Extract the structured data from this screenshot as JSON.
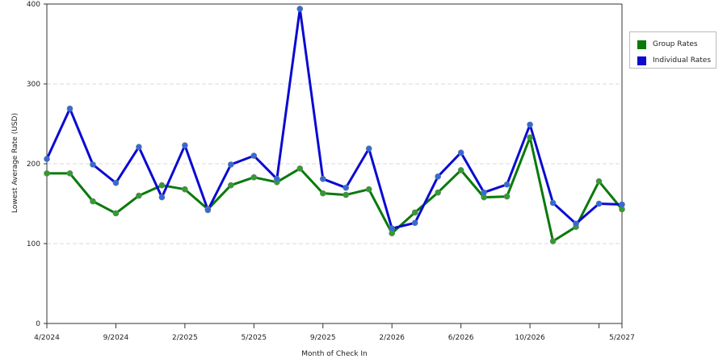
{
  "chart_data": {
    "type": "line",
    "title": "",
    "xlabel": "Month of Check In",
    "ylabel": "Lowest Average Rate (USD)",
    "ylim": [
      0,
      400
    ],
    "yticks": [
      "0",
      "100",
      "200",
      "300",
      "400"
    ],
    "x_tick_labels": [
      "4/2024",
      "9/2024",
      "2/2025",
      "5/2025",
      "9/2025",
      "2/2026",
      "6/2026",
      "10/2026",
      "",
      "5/2027"
    ],
    "x_tick_index": [
      0,
      3,
      6,
      9,
      12,
      15,
      18,
      21,
      24,
      25
    ],
    "grid": "horizontal dashed",
    "legend_position": "right",
    "series": [
      {
        "name": "Group Rates",
        "color": "#0a7a0a",
        "marker_color": "#2e9e2e",
        "values": [
          188,
          188,
          153,
          138,
          160,
          173,
          168,
          143,
          173,
          183,
          177,
          194,
          163,
          161,
          168,
          113,
          139,
          164,
          192,
          158,
          159,
          233,
          103,
          121,
          178,
          143
        ]
      },
      {
        "name": "Individual Rates",
        "color": "#0a0ad2",
        "marker_color": "#2f6be0",
        "values": [
          206,
          269,
          199,
          176,
          221,
          158,
          223,
          142,
          199,
          210,
          181,
          394,
          181,
          170,
          219,
          119,
          126,
          184,
          214,
          164,
          174,
          249,
          151,
          125,
          150,
          149
        ]
      }
    ]
  }
}
